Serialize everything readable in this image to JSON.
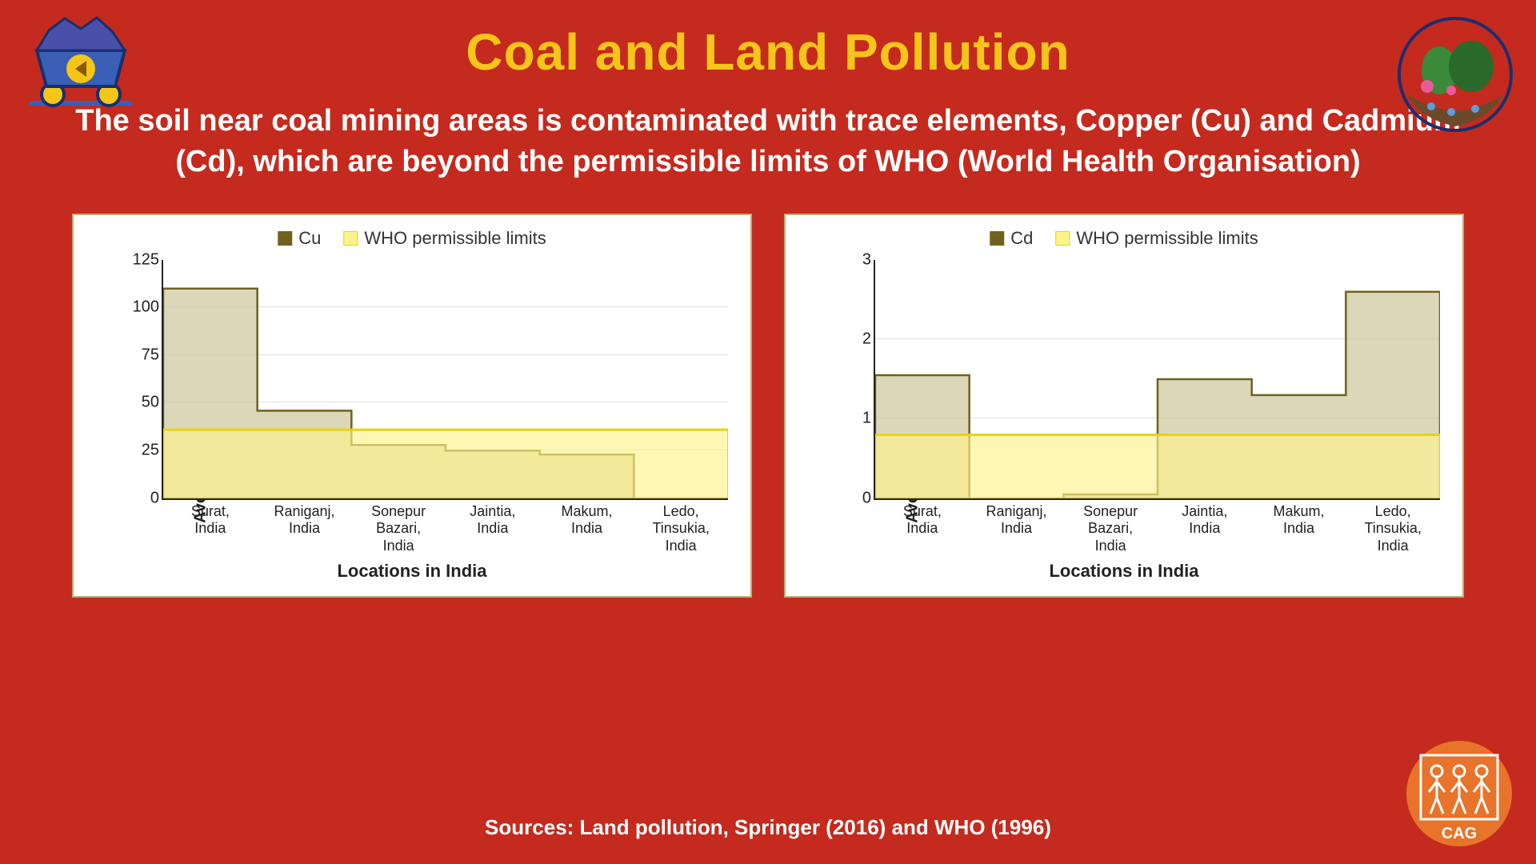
{
  "title": "Coal and Land Pollution",
  "subtitle": "The soil near coal mining areas is contaminated with trace elements, Copper (Cu) and Cadmium (Cd), which are beyond the permissible limits of WHO (World Health Organisation)",
  "sources": "Sources: Land pollution, Springer (2016) and WHO (1996)",
  "colors": {
    "background": "#c52a1e",
    "title": "#f5c518",
    "text": "#ffffff",
    "panel_bg": "#ffffff",
    "panel_border": "#b6b07a",
    "series_fill": "#d2caa3",
    "series_stroke": "#6f621e",
    "who_fill": "#fdf28a",
    "who_stroke": "#e8d400",
    "grid": "#e0e0e0",
    "axis": "#222222"
  },
  "icons": {
    "cart": "coal-cart-icon",
    "terrarium": "terrarium-icon",
    "cag": "cag-logo"
  },
  "chart_cu": {
    "type": "step-area",
    "legend_series": "Cu",
    "legend_who": "WHO permissible limits",
    "y_label": "Average concentration (mg/kg)",
    "x_label": "Locations in India",
    "ylim": [
      0,
      125
    ],
    "ytick_step": 25,
    "categories": [
      "Surat,\nIndia",
      "Raniganj,\nIndia",
      "Sonepur\nBazari,\nIndia",
      "Jaintia,\nIndia",
      "Makum,\nIndia",
      "Ledo,\nTinsukia,\nIndia"
    ],
    "values": [
      110,
      46,
      28,
      25,
      23,
      0
    ],
    "who_limit": 36
  },
  "chart_cd": {
    "type": "step-area",
    "legend_series": "Cd",
    "legend_who": "WHO permissible limits",
    "y_label": "Average concentration (mg/kg)",
    "x_label": "Locations in India",
    "ylim": [
      0,
      3
    ],
    "ytick_step": 1,
    "categories": [
      "Surat,\nIndia",
      "Raniganj,\nIndia",
      "Sonepur\nBazari,\nIndia",
      "Jaintia,\nIndia",
      "Makum,\nIndia",
      "Ledo,\nTinsukia,\nIndia"
    ],
    "values": [
      1.55,
      0,
      0.05,
      1.5,
      1.3,
      2.6
    ],
    "who_limit": 0.8
  }
}
